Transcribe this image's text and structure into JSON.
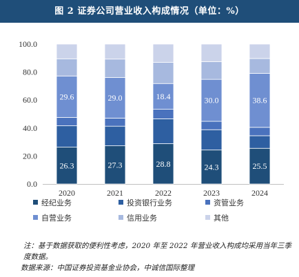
{
  "title": "图 2  证券公司营业收入构成情况（单位：%）",
  "chart_data": {
    "type": "bar",
    "stacked": true,
    "categories": [
      "2020",
      "2021",
      "2022",
      "2023",
      "2024"
    ],
    "ylim": [
      0,
      100
    ],
    "yticks": [
      "0.0",
      "20.0",
      "40.0",
      "60.0",
      "80.0",
      "100.0"
    ],
    "grid": false,
    "legend_position": "bottom",
    "series": [
      {
        "name": "经纪业务",
        "color": "#1f4e79",
        "values": [
          26.3,
          27.3,
          28.8,
          24.3,
          25.5
        ]
      },
      {
        "name": "投资银行业务",
        "color": "#2e5fa1",
        "values": [
          15.3,
          14.0,
          17.8,
          14.5,
          9.0
        ]
      },
      {
        "name": "资管业务",
        "color": "#4a72bd",
        "values": [
          6.0,
          5.8,
          6.8,
          6.0,
          6.0
        ]
      },
      {
        "name": "自营业务",
        "color": "#6f8fd1",
        "values": [
          29.6,
          29.0,
          18.4,
          30.0,
          38.6
        ]
      },
      {
        "name": "信用业务",
        "color": "#a7b9df",
        "values": [
          12.3,
          13.2,
          15.2,
          12.7,
          10.6
        ]
      },
      {
        "name": "其他",
        "color": "#cbd3ea",
        "values": [
          10.5,
          10.7,
          13.0,
          12.5,
          10.3
        ]
      }
    ],
    "data_labels": [
      {
        "series": 0,
        "text": [
          "26.3",
          "27.3",
          "28.8",
          "24.3",
          "25.5"
        ]
      },
      {
        "series": 3,
        "text": [
          "29.6",
          "29.0",
          "18.4",
          "30.0",
          "38.6"
        ]
      }
    ]
  },
  "note": "注：基于数据获取的便利性考虑，2020 年至 2022 年营业收入构成均采用当年三季度数据。",
  "source": "数据来源：中国证券投资基金业协会，中诚信国际整理"
}
